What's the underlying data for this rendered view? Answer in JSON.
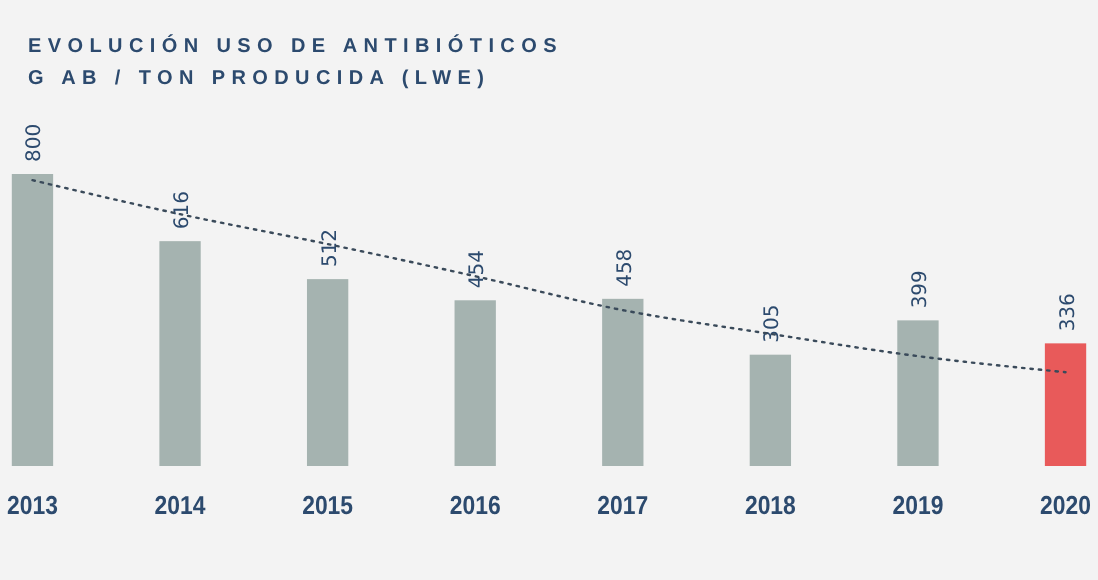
{
  "chart_data": {
    "type": "bar",
    "title": "EVOLUCIÓN USO DE ANTIBIÓTICOS",
    "subtitle": "G AB / TON PRODUCIDA (LWE)",
    "categories": [
      "2013",
      "2014",
      "2015",
      "2016",
      "2017",
      "2018",
      "2019",
      "2020"
    ],
    "series": [
      {
        "values": [
          800,
          616,
          512,
          454,
          458,
          305,
          399,
          336
        ],
        "value_labels": [
          "800",
          "616",
          "512",
          "454",
          "458",
          "305",
          "399",
          "336"
        ],
        "colors": [
          "#a5b3b0",
          "#a5b3b0",
          "#a5b3b0",
          "#a5b3b0",
          "#a5b3b0",
          "#a5b3b0",
          "#a5b3b0",
          "#e85a5a"
        ]
      },
      {
        "type": "line",
        "color": "#3a4a5a",
        "line_style": "dotted",
        "values": [
          783,
          690,
          608,
          520,
          427,
          362,
          301,
          257
        ]
      }
    ]
  }
}
